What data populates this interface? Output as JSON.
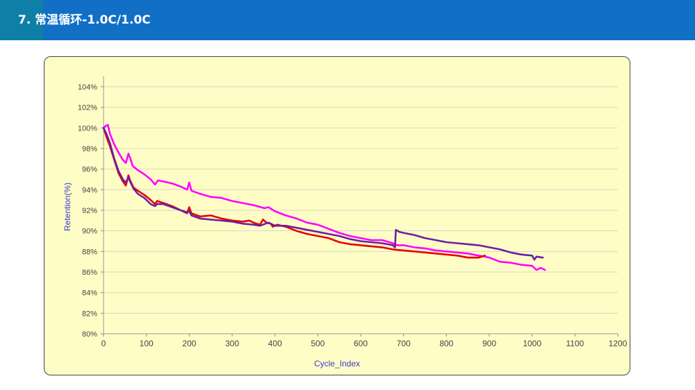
{
  "header": {
    "title": "7.  常温循环-1.0C/1.0C",
    "bar_color": "#1170c6",
    "accent_color": "#0e7fa6"
  },
  "chart_data": {
    "type": "line",
    "title": "",
    "xlabel": "Cycle_Index",
    "ylabel": "Retention(%)",
    "xlim": [
      0,
      1200
    ],
    "ylim": [
      80,
      104
    ],
    "x_ticks": [
      0,
      100,
      200,
      300,
      400,
      500,
      600,
      700,
      800,
      900,
      1000,
      1100,
      1200
    ],
    "y_ticks": [
      80,
      82,
      84,
      86,
      88,
      90,
      92,
      94,
      96,
      98,
      100,
      102,
      104
    ],
    "y_tick_format": "{v}%",
    "grid": "horizontal",
    "legend": "none",
    "background": "#fffdc6",
    "series": [
      {
        "color": "#ff00ff",
        "points": [
          [
            0,
            100
          ],
          [
            5,
            100.2
          ],
          [
            10,
            100.3
          ],
          [
            15,
            99.4
          ],
          [
            25,
            98.4
          ],
          [
            35,
            97.6
          ],
          [
            45,
            96.9
          ],
          [
            52,
            96.6
          ],
          [
            58,
            97.5
          ],
          [
            62,
            97.1
          ],
          [
            68,
            96.3
          ],
          [
            80,
            95.9
          ],
          [
            95,
            95.5
          ],
          [
            110,
            95
          ],
          [
            120,
            94.5
          ],
          [
            127,
            94.9
          ],
          [
            140,
            94.8
          ],
          [
            160,
            94.6
          ],
          [
            180,
            94.3
          ],
          [
            195,
            94
          ],
          [
            200,
            94.7
          ],
          [
            205,
            93.9
          ],
          [
            225,
            93.6
          ],
          [
            250,
            93.3
          ],
          [
            275,
            93.2
          ],
          [
            300,
            92.9
          ],
          [
            325,
            92.7
          ],
          [
            350,
            92.5
          ],
          [
            375,
            92.2
          ],
          [
            385,
            92.3
          ],
          [
            400,
            91.9
          ],
          [
            425,
            91.5
          ],
          [
            450,
            91.2
          ],
          [
            475,
            90.8
          ],
          [
            500,
            90.6
          ],
          [
            525,
            90.2
          ],
          [
            550,
            89.8
          ],
          [
            575,
            89.5
          ],
          [
            600,
            89.3
          ],
          [
            625,
            89.1
          ],
          [
            650,
            89.1
          ],
          [
            675,
            88.8
          ],
          [
            685,
            88.6
          ],
          [
            700,
            88.6
          ],
          [
            725,
            88.4
          ],
          [
            750,
            88.3
          ],
          [
            775,
            88.1
          ],
          [
            800,
            88
          ],
          [
            825,
            87.9
          ],
          [
            850,
            87.8
          ],
          [
            875,
            87.6
          ],
          [
            890,
            87.5
          ],
          [
            900,
            87.4
          ],
          [
            925,
            87
          ],
          [
            950,
            86.9
          ],
          [
            975,
            86.7
          ],
          [
            1000,
            86.6
          ],
          [
            1010,
            86.2
          ],
          [
            1020,
            86.4
          ],
          [
            1030,
            86.2
          ]
        ]
      },
      {
        "color": "#e80000",
        "points": [
          [
            0,
            100
          ],
          [
            8,
            99
          ],
          [
            15,
            98.2
          ],
          [
            25,
            96.9
          ],
          [
            35,
            95.6
          ],
          [
            45,
            94.8
          ],
          [
            52,
            94.4
          ],
          [
            58,
            95.4
          ],
          [
            62,
            94.9
          ],
          [
            70,
            94.2
          ],
          [
            80,
            93.9
          ],
          [
            95,
            93.5
          ],
          [
            110,
            93
          ],
          [
            120,
            92.6
          ],
          [
            125,
            92.9
          ],
          [
            140,
            92.7
          ],
          [
            160,
            92.4
          ],
          [
            180,
            92
          ],
          [
            195,
            91.7
          ],
          [
            200,
            92.3
          ],
          [
            205,
            91.7
          ],
          [
            225,
            91.4
          ],
          [
            250,
            91.5
          ],
          [
            275,
            91.2
          ],
          [
            300,
            91
          ],
          [
            325,
            90.9
          ],
          [
            340,
            91
          ],
          [
            350,
            90.8
          ],
          [
            365,
            90.6
          ],
          [
            372,
            91.1
          ],
          [
            380,
            90.8
          ],
          [
            390,
            90.7
          ],
          [
            395,
            90.4
          ],
          [
            405,
            90.6
          ],
          [
            425,
            90.4
          ],
          [
            450,
            90
          ],
          [
            475,
            89.7
          ],
          [
            500,
            89.5
          ],
          [
            525,
            89.3
          ],
          [
            550,
            88.9
          ],
          [
            575,
            88.7
          ],
          [
            600,
            88.6
          ],
          [
            625,
            88.5
          ],
          [
            650,
            88.4
          ],
          [
            675,
            88.2
          ],
          [
            700,
            88.1
          ],
          [
            725,
            88
          ],
          [
            750,
            87.9
          ],
          [
            775,
            87.8
          ],
          [
            800,
            87.7
          ],
          [
            825,
            87.6
          ],
          [
            850,
            87.4
          ],
          [
            875,
            87.4
          ],
          [
            890,
            87.6
          ]
        ]
      },
      {
        "color": "#6a1fa6",
        "points": [
          [
            0,
            100
          ],
          [
            8,
            99.3
          ],
          [
            15,
            98.5
          ],
          [
            25,
            97
          ],
          [
            35,
            95.8
          ],
          [
            45,
            95
          ],
          [
            52,
            94.7
          ],
          [
            58,
            95.2
          ],
          [
            62,
            94.8
          ],
          [
            70,
            94.1
          ],
          [
            80,
            93.6
          ],
          [
            95,
            93.2
          ],
          [
            110,
            92.6
          ],
          [
            120,
            92.4
          ],
          [
            125,
            92.6
          ],
          [
            140,
            92.6
          ],
          [
            160,
            92.3
          ],
          [
            180,
            92
          ],
          [
            195,
            91.8
          ],
          [
            200,
            91.9
          ],
          [
            205,
            91.5
          ],
          [
            225,
            91.2
          ],
          [
            250,
            91.1
          ],
          [
            275,
            91
          ],
          [
            300,
            90.9
          ],
          [
            325,
            90.7
          ],
          [
            350,
            90.6
          ],
          [
            365,
            90.5
          ],
          [
            385,
            90.8
          ],
          [
            395,
            90.6
          ],
          [
            400,
            90.5
          ],
          [
            425,
            90.5
          ],
          [
            450,
            90.3
          ],
          [
            475,
            90.1
          ],
          [
            500,
            89.9
          ],
          [
            525,
            89.7
          ],
          [
            550,
            89.5
          ],
          [
            575,
            89.2
          ],
          [
            600,
            89
          ],
          [
            625,
            88.9
          ],
          [
            650,
            88.8
          ],
          [
            675,
            88.6
          ],
          [
            680,
            88.4
          ],
          [
            682,
            90.1
          ],
          [
            690,
            89.9
          ],
          [
            700,
            89.8
          ],
          [
            725,
            89.6
          ],
          [
            750,
            89.3
          ],
          [
            775,
            89.1
          ],
          [
            800,
            88.9
          ],
          [
            825,
            88.8
          ],
          [
            850,
            88.7
          ],
          [
            875,
            88.6
          ],
          [
            900,
            88.4
          ],
          [
            925,
            88.2
          ],
          [
            950,
            87.9
          ],
          [
            975,
            87.7
          ],
          [
            1000,
            87.6
          ],
          [
            1005,
            87.2
          ],
          [
            1010,
            87.5
          ],
          [
            1025,
            87.4
          ]
        ]
      }
    ]
  }
}
